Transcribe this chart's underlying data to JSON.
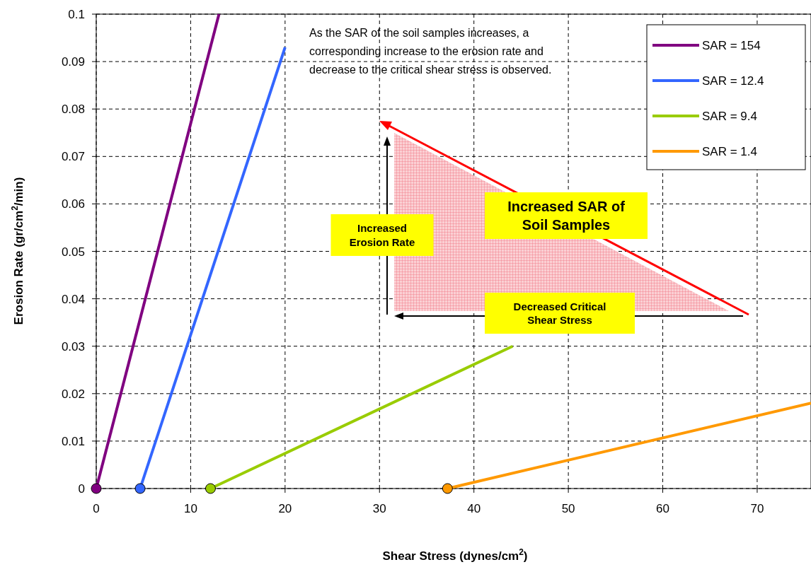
{
  "chart_data": {
    "type": "line",
    "xlabel": "Shear Stress (dynes/cm$^{2}$)",
    "ylabel": "Erosion Rate (gr/cm$^{2}$/min)",
    "xlim": [
      0,
      75.7
    ],
    "ylim": [
      0,
      0.1
    ],
    "xticks": [
      0,
      10,
      20,
      30,
      40,
      50,
      60,
      70
    ],
    "yticks": [
      0,
      0.01,
      0.02,
      0.03,
      0.04,
      0.05,
      0.06,
      0.07,
      0.08,
      0.09,
      0.1
    ],
    "grid": true,
    "legend": "top right",
    "marker": "none",
    "line_style": "solid",
    "series": [
      {
        "name": "SAR = 154",
        "color": "#800080",
        "x": [
          0,
          13
        ],
        "values": [
          0,
          0.1
        ]
      },
      {
        "name": "SAR = 12.4",
        "color": "#3366ff",
        "x": [
          4.65,
          20
        ],
        "values": [
          0,
          0.093
        ]
      },
      {
        "name": "SAR = 9.4",
        "color": "#99cc00",
        "x": [
          12.1,
          44.1
        ],
        "values": [
          0,
          0.03
        ]
      },
      {
        "name": "SAR = 1.4",
        "color": "#ff9900",
        "x": [
          37.2,
          75.7
        ],
        "values": [
          0,
          0.018
        ]
      },
      {
        "type": "scatter",
        "marker": "circle",
        "x": [
          0,
          4.65,
          12.1,
          37.2
        ],
        "values": [
          0,
          0,
          0,
          0
        ],
        "colors": [
          "#800080",
          "#3366ff",
          "#99cc00",
          "#ff9900"
        ]
      }
    ],
    "annotations": [
      "As the SAR of the soil samples increases, a corresponding increase to the erosion rate and decrease to the critical shear stress is observed.",
      "Increased Erosion Rate",
      "Increased SAR of Soil Samples",
      "Decreased Critical Shear Stress"
    ]
  }
}
